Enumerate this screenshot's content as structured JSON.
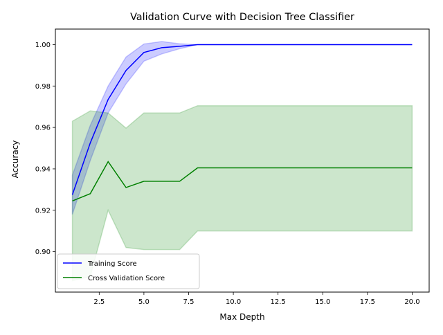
{
  "chart_data": {
    "type": "line",
    "title": "Validation Curve with Decision Tree Classifier",
    "xlabel": "Max Depth",
    "ylabel": "Accuracy",
    "xlim": [
      0.05,
      20.95
    ],
    "ylim": [
      0.8805,
      1.0075
    ],
    "xticks": [
      2.5,
      5.0,
      7.5,
      10.0,
      12.5,
      15.0,
      17.5,
      20.0
    ],
    "xtick_labels": [
      "2.5",
      "5.0",
      "7.5",
      "10.0",
      "12.5",
      "15.0",
      "17.5",
      "20.0"
    ],
    "yticks": [
      0.9,
      0.92,
      0.94,
      0.96,
      0.98,
      1.0
    ],
    "ytick_labels": [
      "0.90",
      "0.92",
      "0.94",
      "0.96",
      "0.98",
      "1.00"
    ],
    "grid": false,
    "legend_position": "lower-left",
    "x": [
      1,
      2,
      3,
      4,
      5,
      6,
      7,
      8,
      9,
      10,
      11,
      12,
      13,
      14,
      15,
      16,
      17,
      18,
      19,
      20
    ],
    "series": [
      {
        "name": "Training Score",
        "color": "#0000ff",
        "band_color": "#0000ff",
        "band_opacity": 0.2,
        "values": [
          0.9275,
          0.9525,
          0.9735,
          0.9875,
          0.9962,
          0.9985,
          0.9992,
          1.0,
          1.0,
          1.0,
          1.0,
          1.0,
          1.0,
          1.0,
          1.0,
          1.0,
          1.0,
          1.0,
          1.0,
          1.0
        ],
        "lower": [
          0.918,
          0.944,
          0.967,
          0.981,
          0.992,
          0.9955,
          0.998,
          1.0,
          1.0,
          1.0,
          1.0,
          1.0,
          1.0,
          1.0,
          1.0,
          1.0,
          1.0,
          1.0,
          1.0,
          1.0
        ],
        "upper": [
          0.937,
          0.961,
          0.98,
          0.994,
          1.0003,
          1.0015,
          1.0004,
          1.0,
          1.0,
          1.0,
          1.0,
          1.0,
          1.0,
          1.0,
          1.0,
          1.0,
          1.0,
          1.0,
          1.0,
          1.0
        ]
      },
      {
        "name": "Cross Validation Score",
        "color": "#008000",
        "band_color": "#008000",
        "band_opacity": 0.2,
        "values": [
          0.9245,
          0.928,
          0.9435,
          0.931,
          0.934,
          0.934,
          0.934,
          0.9405,
          0.9405,
          0.9405,
          0.9405,
          0.9405,
          0.9405,
          0.9405,
          0.9405,
          0.9405,
          0.9405,
          0.9405,
          0.9405,
          0.9405
        ],
        "lower": [
          0.886,
          0.888,
          0.92,
          0.902,
          0.901,
          0.901,
          0.901,
          0.91,
          0.91,
          0.91,
          0.91,
          0.91,
          0.91,
          0.91,
          0.91,
          0.91,
          0.91,
          0.91,
          0.91,
          0.91
        ],
        "upper": [
          0.963,
          0.968,
          0.967,
          0.9597,
          0.967,
          0.967,
          0.967,
          0.9705,
          0.9705,
          0.9705,
          0.9705,
          0.9705,
          0.9705,
          0.9705,
          0.9705,
          0.9705,
          0.9705,
          0.9705,
          0.9705,
          0.9705
        ]
      }
    ]
  }
}
